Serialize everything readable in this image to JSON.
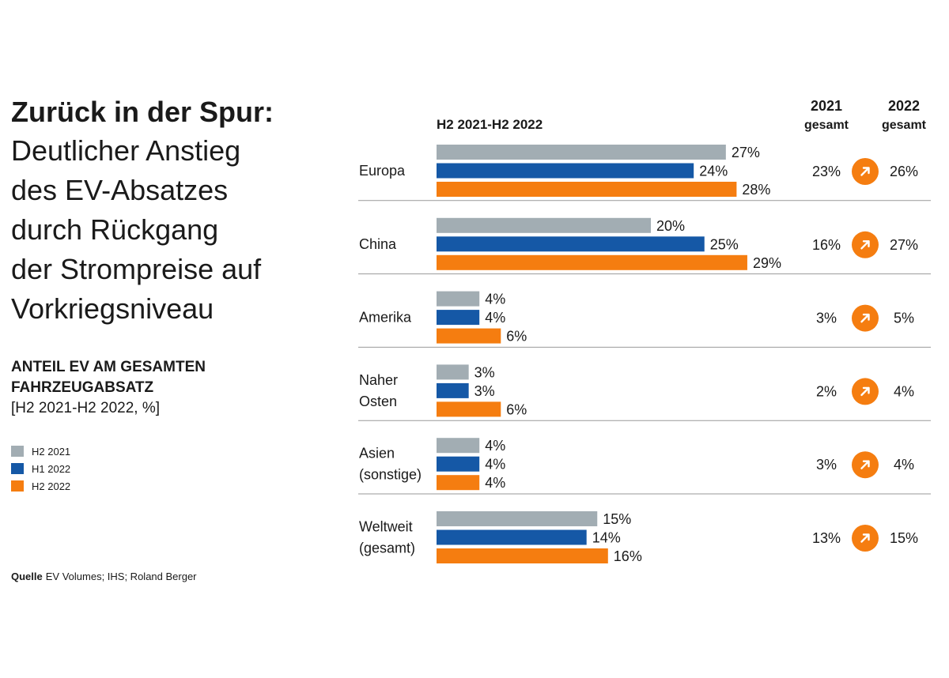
{
  "title_bold": "Zurück in der Spur:",
  "title_lines": [
    "Deutlicher Anstieg",
    "des EV-Absatzes",
    "durch Rückgang",
    "der Strompreise auf",
    "Vorkriegsniveau"
  ],
  "subtitle_bold_lines": [
    "ANTEIL EV AM GESAMTEN",
    "FAHRZEUGABSATZ"
  ],
  "subtitle_unit": "[H2 2021-H2 2022, %]",
  "source_label": "Quelle",
  "source_text": "EV Volumes; IHS; Roland Berger",
  "colors": {
    "h2_2021": "#a2adb3",
    "h1_2022": "#1558a6",
    "h2_2022": "#f57d10",
    "arrow": "#f57d10",
    "divider": "#999999"
  },
  "chart_data": {
    "type": "bar",
    "title": "H2 2021-H2 2022",
    "unit": "%",
    "xlim": [
      0,
      30
    ],
    "categories": [
      [
        "Europa"
      ],
      [
        "China"
      ],
      [
        "Amerika"
      ],
      [
        "Naher",
        "Osten"
      ],
      [
        "Asien",
        "(sonstige)"
      ],
      [
        "Weltweit",
        "(gesamt)"
      ]
    ],
    "series": [
      {
        "name": "H2 2021",
        "values": [
          27,
          20,
          4,
          3,
          4,
          15
        ]
      },
      {
        "name": "H1 2022",
        "values": [
          24,
          25,
          4,
          3,
          4,
          14
        ]
      },
      {
        "name": "H2 2022",
        "values": [
          28,
          29,
          6,
          6,
          4,
          16
        ]
      }
    ],
    "totals_header": {
      "y2021": [
        "2021",
        "gesamt"
      ],
      "y2022": [
        "2022",
        "gesamt"
      ]
    },
    "total_2021": [
      23,
      16,
      3,
      2,
      3,
      13
    ],
    "total_2022": [
      26,
      27,
      5,
      4,
      4,
      15
    ],
    "trend_icon": "arrow-up-right-icon"
  }
}
